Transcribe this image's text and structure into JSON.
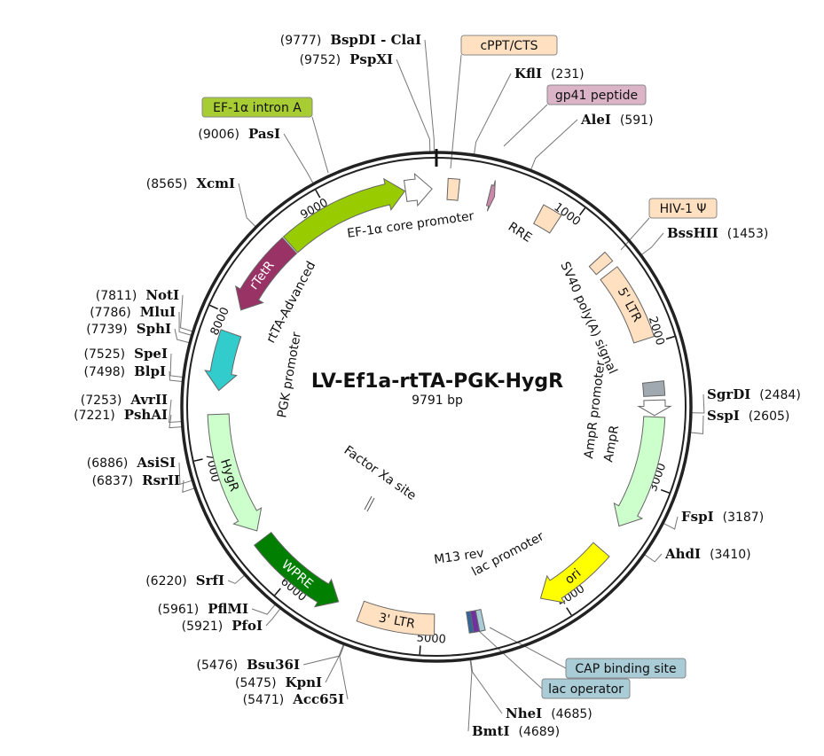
{
  "plasmid": {
    "name": "LV-Ef1a-rtTA-PGK-HygR",
    "length_label": "9791 bp",
    "length": 9791
  },
  "ticks": [
    "1000",
    "2000",
    "3000",
    "4000",
    "5000",
    "6000",
    "7000",
    "8000",
    "9000"
  ],
  "sites": [
    {
      "name": "BspDI - ClaI",
      "pos": 9777,
      "pos_label": "(9777)"
    },
    {
      "name": "PspXI",
      "pos": 9752,
      "pos_label": "(9752)"
    },
    {
      "name": "KflI",
      "pos": 231,
      "pos_label": "(231)"
    },
    {
      "name": "AleI",
      "pos": 591,
      "pos_label": "(591)"
    },
    {
      "name": "BssHII",
      "pos": 1453,
      "pos_label": "(1453)"
    },
    {
      "name": "SgrDI",
      "pos": 2484,
      "pos_label": "(2484)"
    },
    {
      "name": "SspI",
      "pos": 2605,
      "pos_label": "(2605)"
    },
    {
      "name": "FspI",
      "pos": 3187,
      "pos_label": "(3187)"
    },
    {
      "name": "AhdI",
      "pos": 3410,
      "pos_label": "(3410)"
    },
    {
      "name": "NheI",
      "pos": 4685,
      "pos_label": "(4685)"
    },
    {
      "name": "BmtI",
      "pos": 4689,
      "pos_label": "(4689)"
    },
    {
      "name": "Acc65I",
      "pos": 5471,
      "pos_label": "(5471)"
    },
    {
      "name": "KpnI",
      "pos": 5475,
      "pos_label": "(5475)"
    },
    {
      "name": "Bsu36I",
      "pos": 5476,
      "pos_label": "(5476)"
    },
    {
      "name": "PfoI",
      "pos": 5921,
      "pos_label": "(5921)"
    },
    {
      "name": "PflMI",
      "pos": 5961,
      "pos_label": "(5961)"
    },
    {
      "name": "SrfI",
      "pos": 6220,
      "pos_label": "(6220)"
    },
    {
      "name": "RsrII",
      "pos": 6837,
      "pos_label": "(6837)"
    },
    {
      "name": "AsiSI",
      "pos": 6886,
      "pos_label": "(6886)"
    },
    {
      "name": "PshAI",
      "pos": 7221,
      "pos_label": "(7221)"
    },
    {
      "name": "AvrII",
      "pos": 7253,
      "pos_label": "(7253)"
    },
    {
      "name": "BlpI",
      "pos": 7498,
      "pos_label": "(7498)"
    },
    {
      "name": "SpeI",
      "pos": 7525,
      "pos_label": "(7525)"
    },
    {
      "name": "SphI",
      "pos": 7739,
      "pos_label": "(7739)"
    },
    {
      "name": "MluI",
      "pos": 7786,
      "pos_label": "(7786)"
    },
    {
      "name": "NotI",
      "pos": 7811,
      "pos_label": "(7811)"
    },
    {
      "name": "XcmI",
      "pos": 8565,
      "pos_label": "(8565)"
    },
    {
      "name": "PasI",
      "pos": 9006,
      "pos_label": "(9006)"
    }
  ],
  "features": [
    {
      "name": "EF-1α core promoter",
      "start": 9570,
      "end": 9760,
      "dir": "cw",
      "shape": "arrow",
      "color": "#ffffff",
      "text": ""
    },
    {
      "name": "EF-1α intron A",
      "start": 8650,
      "end": 9565,
      "dir": "cw",
      "shape": "arrow",
      "color": "#99cc00",
      "text": ""
    },
    {
      "name": "rTetR",
      "start": 8060,
      "end": 8640,
      "dir": "ccw",
      "shape": "arrow",
      "color": "#993366",
      "text": "rTetR",
      "textColor": "#ffffff"
    },
    {
      "name": "PGK promoter",
      "start": 7460,
      "end": 7880,
      "dir": "ccw",
      "shape": "arrow",
      "color": "#33cccc",
      "text": ""
    },
    {
      "name": "HygR",
      "start": 6400,
      "end": 7290,
      "dir": "ccw",
      "shape": "arrow",
      "color": "#ccffcc",
      "text": "HygR",
      "textColor": "#111111"
    },
    {
      "name": "WPRE",
      "start": 5620,
      "end": 6330,
      "dir": "ccw",
      "shape": "arrow",
      "color": "#007f00",
      "text": "WPRE",
      "textColor": "#ffffff"
    },
    {
      "name": "3' LTR",
      "start": 4910,
      "end": 5450,
      "dir": "none",
      "shape": "box",
      "color": "#ffe0c0",
      "text": "3' LTR",
      "textColor": "#111111"
    },
    {
      "name": "lac operator",
      "start": 4560,
      "end": 4600,
      "dir": "none",
      "shape": "box",
      "color": "#a9ccd6",
      "text": ""
    },
    {
      "name": "lac promoter",
      "start": 4600,
      "end": 4640,
      "dir": "none",
      "shape": "box",
      "color": "#7030a0",
      "text": ""
    },
    {
      "name": "CAP binding site",
      "start": 4640,
      "end": 4670,
      "dir": "none",
      "shape": "box",
      "color": "#336699",
      "text": ""
    },
    {
      "name": "ori",
      "start": 3560,
      "end": 4120,
      "dir": "cw",
      "shape": "arrow",
      "color": "#ffff00",
      "text": "ori",
      "textColor": "#111111"
    },
    {
      "name": "AmpR",
      "start": 2520,
      "end": 3350,
      "dir": "cw",
      "shape": "arrow",
      "color": "#ccffcc",
      "text": ""
    },
    {
      "name": "AmpR promoter",
      "start": 2400,
      "end": 2510,
      "dir": "cw",
      "shape": "arrow",
      "color": "#ffffff",
      "text": ""
    },
    {
      "name": "SV40 poly(A) signal",
      "start": 2270,
      "end": 2370,
      "dir": "none",
      "shape": "box",
      "color": "#a0a8b0",
      "text": ""
    },
    {
      "name": "5' LTR",
      "start": 1420,
      "end": 1960,
      "dir": "none",
      "shape": "box",
      "color": "#ffe0c0",
      "text": "5' LTR",
      "textColor": "#111111"
    },
    {
      "name": "HIV-1 Ψ",
      "start": 1290,
      "end": 1370,
      "dir": "none",
      "shape": "box",
      "color": "#ffe0c0",
      "text": ""
    },
    {
      "name": "RRE",
      "start": 760,
      "end": 900,
      "dir": "none",
      "shape": "box",
      "color": "#ffe0c0",
      "text": ""
    },
    {
      "name": "gp41 peptide",
      "start": 380,
      "end": 420,
      "dir": "cw",
      "shape": "arrow",
      "color": "#cc88aa",
      "text": ""
    },
    {
      "name": "cPPT/CTS",
      "start": 80,
      "end": 160,
      "dir": "none",
      "shape": "box",
      "color": "#ffe0c0",
      "text": ""
    }
  ],
  "boxed_labels": [
    {
      "text": "cPPT/CTS",
      "color": "#ffe0c0"
    },
    {
      "text": "gp41 peptide",
      "color": "#dcb4c8"
    },
    {
      "text": "EF-1α intron A",
      "color": "#a8cc33"
    },
    {
      "text": "HIV-1 Ψ",
      "color": "#ffe0c0"
    },
    {
      "text": "CAP binding site",
      "color": "#a9ccd6"
    },
    {
      "text": "lac operator",
      "color": "#a9ccd6"
    }
  ],
  "inner_labels": {
    "ef1a_core": "EF-1α core promoter",
    "rre": "RRE",
    "sv40": "SV40 poly(A) signal",
    "ampr_promoter": "AmpR promoter",
    "ampr": "AmpR",
    "m13rev": "M13 rev",
    "lac_promoter": "lac promoter",
    "factor_xa": "Factor Xa site",
    "rtta": "rtTA-Advanced",
    "pgk": "PGK promoter"
  }
}
